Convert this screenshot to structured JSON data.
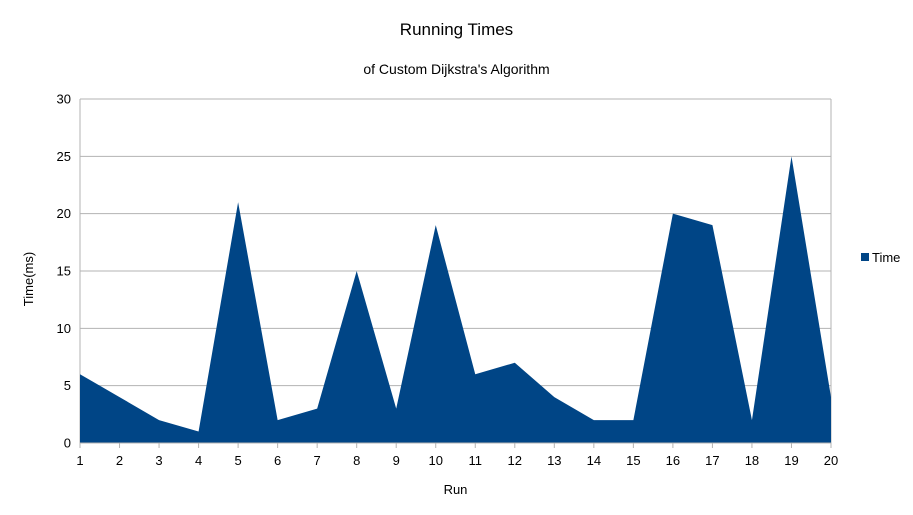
{
  "chart_data": {
    "type": "area",
    "title": "Running Times",
    "subtitle": "of Custom Dijkstra's Algorithm",
    "xlabel": "Run",
    "ylabel": "Time(ms)",
    "ylim": [
      0,
      30
    ],
    "yticks": [
      0,
      5,
      10,
      15,
      20,
      25,
      30
    ],
    "x": [
      1,
      2,
      3,
      4,
      5,
      6,
      7,
      8,
      9,
      10,
      11,
      12,
      13,
      14,
      15,
      16,
      17,
      18,
      19,
      20
    ],
    "series": [
      {
        "name": "Time",
        "values": [
          6,
          4,
          2,
          1,
          21,
          2,
          3,
          15,
          3,
          19,
          6,
          7,
          4,
          2,
          2,
          20,
          19,
          2,
          25,
          4
        ]
      }
    ],
    "grid": true,
    "legend": "right",
    "colors": {
      "series": "#004586",
      "grid": "#b3b3b3",
      "axis": "#b3b3b3"
    }
  }
}
